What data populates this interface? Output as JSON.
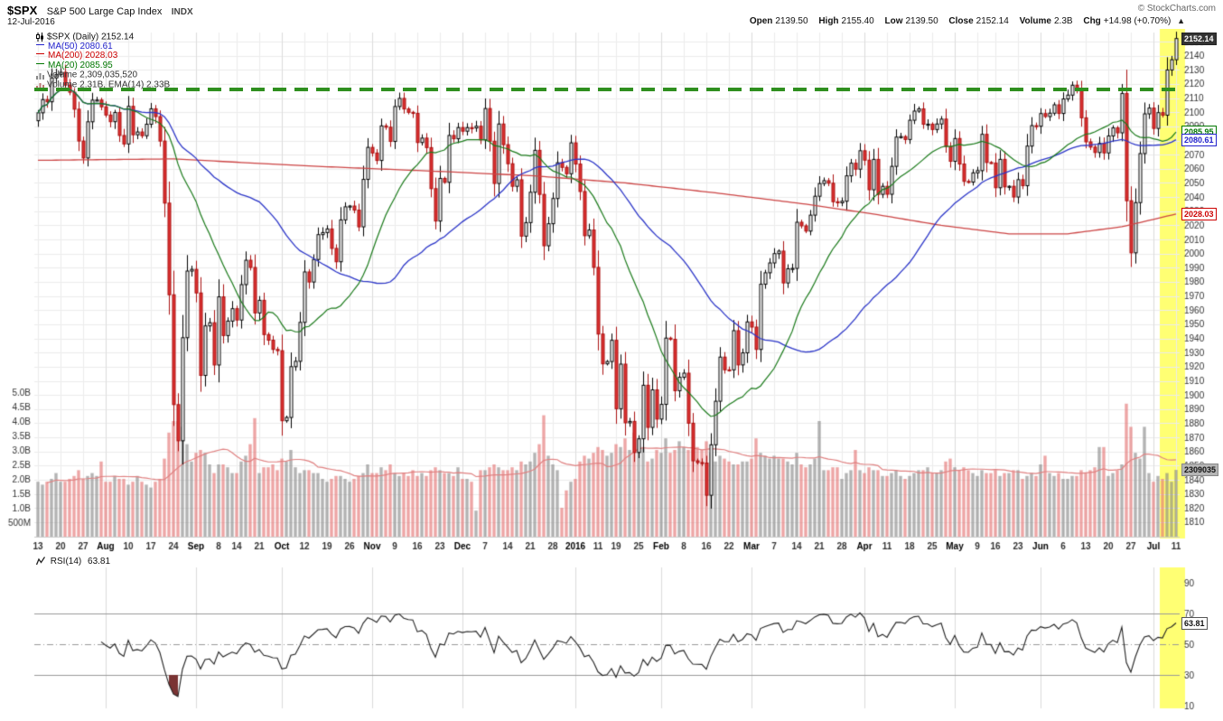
{
  "header": {
    "symbol": "$SPX",
    "name": "S&P 500 Large Cap Index",
    "exchange": "INDX",
    "copyright": "© StockCharts.com",
    "date": "12-Jul-2016",
    "quote": [
      {
        "label": "Open",
        "value": "2139.50"
      },
      {
        "label": "High",
        "value": "2155.40"
      },
      {
        "label": "Low",
        "value": "2139.50"
      },
      {
        "label": "Close",
        "value": "2152.14"
      },
      {
        "label": "Volume",
        "value": "2.3B"
      },
      {
        "label": "Chg",
        "value": "+14.98 (+0.70%)"
      }
    ],
    "arrow": "▲"
  },
  "legend": {
    "items": [
      {
        "text": "$SPX (Daily) 2152.14",
        "color": "#111111"
      },
      {
        "text": "MA(50) 2080.61",
        "color": "#2222cc"
      },
      {
        "text": "MA(200) 2028.03",
        "color": "#cc0000"
      },
      {
        "text": "MA(20) 2085.95",
        "color": "#007700"
      },
      {
        "text": "Volume 2,309,035,520",
        "color": "#333333"
      },
      {
        "text": "Volume 2.31B, EMA(14) 2.33B",
        "color": "#333333"
      }
    ]
  },
  "tags": {
    "last": "2152.14",
    "ma20": "2085.95",
    "ma50": "2080.61",
    "ma200": "2028.03",
    "volume": "2309035"
  },
  "rsi_panel": {
    "label": "RSI(14)",
    "value": "63.81",
    "ticks": [
      90,
      70,
      50,
      30,
      10
    ]
  },
  "chart_data": {
    "type": "candlestick",
    "title": "$SPX S&P 500 Large Cap Index (Daily) with volume and RSI(14)",
    "price_axis": {
      "min": 1810,
      "max": 2150,
      "step": 10
    },
    "volume_axis": [
      {
        "label": "5.0B",
        "value": 5.0
      },
      {
        "label": "4.5B",
        "value": 4.5
      },
      {
        "label": "4.0B",
        "value": 4.0
      },
      {
        "label": "3.5B",
        "value": 3.5
      },
      {
        "label": "3.0B",
        "value": 3.0
      },
      {
        "label": "2.5B",
        "value": 2.5
      },
      {
        "label": "2.0B",
        "value": 2.0
      },
      {
        "label": "1.5B",
        "value": 1.5
      },
      {
        "label": "1.0B",
        "value": 1.0
      },
      {
        "label": "500M",
        "value": 0.5
      }
    ],
    "x_tick_labels": [
      "13",
      "20",
      "27",
      "Aug",
      "10",
      "17",
      "24",
      "Sep",
      "8",
      "14",
      "21",
      "Oct",
      "12",
      "19",
      "26",
      "Nov",
      "9",
      "16",
      "23",
      "Dec",
      "7",
      "14",
      "21",
      "28",
      "2016",
      "11",
      "19",
      "25",
      "Feb",
      "8",
      "16",
      "22",
      "Mar",
      "7",
      "14",
      "21",
      "28",
      "Apr",
      "11",
      "18",
      "25",
      "May",
      "9",
      "16",
      "23",
      "Jun",
      "6",
      "13",
      "20",
      "27",
      "Jul",
      "11"
    ],
    "resistance_level": 2116,
    "volume_tag_value": 2.309,
    "first_open": 2094.0,
    "closes": [
      2099.6,
      2108.95,
      2107.4,
      2124.29,
      2126.64,
      2128.28,
      2119.21,
      2114.15,
      2102.15,
      2079.65,
      2067.64,
      2093.25,
      2108.57,
      2108.63,
      2103.84,
      2098.04,
      2093.32,
      2099.84,
      2083.56,
      2077.57,
      2104.18,
      2084.07,
      2086.05,
      2083.39,
      2091.54,
      2102.44,
      2096.92,
      2079.61,
      2035.73,
      1970.89,
      1893.21,
      1867.61,
      1940.51,
      1987.66,
      1988.87,
      1972.18,
      1913.85,
      1948.86,
      1951.13,
      1921.22,
      1969.41,
      1942.04,
      1952.29,
      1961.05,
      1953.03,
      1978.09,
      1995.31,
      1990.2,
      1958.03,
      1966.97,
      1942.74,
      1938.76,
      1932.24,
      1931.34,
      1881.77,
      1884.09,
      1920.03,
      1923.82,
      1951.36,
      1987.05,
      1979.92,
      1995.83,
      2013.43,
      2014.89,
      2017.46,
      2003.69,
      1994.24,
      2023.86,
      2033.11,
      2033.66,
      2030.77,
      2018.94,
      2052.51,
      2075.15,
      2071.18,
      2065.89,
      2090.35,
      2089.41,
      2079.36,
      2104.05,
      2109.79,
      2102.31,
      2099.93,
      2099.2,
      2078.58,
      2081.72,
      2075.0,
      2045.97,
      2023.04,
      2053.19,
      2050.44,
      2083.58,
      2081.24,
      2089.17,
      2086.59,
      2089.14,
      2088.87,
      2090.11,
      2080.41,
      2102.63,
      2079.51,
      2049.62,
      2091.69,
      2077.07,
      2063.59,
      2047.62,
      2052.23,
      2012.37,
      2021.94,
      2043.41,
      2073.07,
      2041.89,
      2005.55,
      2021.15,
      2038.97,
      2064.29,
      2060.99,
      2056.5,
      2078.36,
      2063.36,
      2043.94,
      2012.66,
      2016.71,
      1990.26,
      1943.09,
      1922.03,
      1923.67,
      1938.68,
      1890.28,
      1921.84,
      1880.33,
      1881.33,
      1859.33,
      1868.99,
      1906.9,
      1877.08,
      1903.63,
      1882.95,
      1893.36,
      1940.24,
      1939.38,
      1903.03,
      1912.53,
      1915.45,
      1880.05,
      1853.44,
      1852.21,
      1851.86,
      1829.08,
      1864.78,
      1895.58,
      1926.82,
      1917.83,
      1917.78,
      1945.5,
      1921.27,
      1929.8,
      1951.7,
      1948.05,
      1932.23,
      1978.35,
      1986.45,
      1993.4,
      1999.99,
      2001.76,
      1979.26,
      1989.26,
      1989.57,
      2022.19,
      2019.64,
      2015.93,
      2027.22,
      2040.59,
      2049.58,
      2051.6,
      2049.8,
      2036.71,
      2035.94,
      2037.05,
      2055.01,
      2063.95,
      2059.74,
      2072.78,
      2066.13,
      2045.17,
      2066.66,
      2041.91,
      2047.6,
      2041.99,
      2061.72,
      2082.42,
      2082.78,
      2080.73,
      2094.34,
      2100.8,
      2102.4,
      2091.48,
      2091.58,
      2087.79,
      2091.7,
      2095.15,
      2075.81,
      2065.3,
      2081.43,
      2063.37,
      2051.12,
      2050.63,
      2057.14,
      2058.69,
      2084.39,
      2064.46,
      2064.11,
      2046.61,
      2066.66,
      2047.21,
      2047.63,
      2040.04,
      2052.32,
      2048.04,
      2076.06,
      2090.54,
      2090.1,
      2099.06,
      2096.96,
      2099.33,
      2105.26,
      2099.13,
      2109.41,
      2112.13,
      2119.12,
      2115.48,
      2096.07,
      2079.06,
      2075.32,
      2071.5,
      2077.99,
      2071.22,
      2083.25,
      2088.9,
      2085.45,
      2113.32,
      2037.41,
      2000.54,
      2036.09,
      2070.77,
      2098.86,
      2102.95,
      2088.55,
      2099.73,
      2097.9,
      2129.9,
      2137.16,
      2152.14
    ],
    "volumes_B": [
      1.9,
      1.8,
      1.9,
      2.0,
      2.2,
      1.9,
      1.9,
      2.0,
      2.1,
      2.3,
      2.0,
      2.1,
      2.2,
      2.1,
      2.6,
      1.9,
      1.9,
      2.1,
      2.0,
      2.0,
      1.8,
      1.9,
      2.1,
      1.9,
      1.8,
      1.7,
      1.9,
      2.0,
      2.7,
      3.6,
      4.0,
      4.0,
      3.8,
      3.2,
      2.6,
      2.9,
      3.0,
      2.9,
      2.5,
      2.2,
      2.5,
      2.5,
      2.4,
      2.2,
      2.2,
      2.6,
      2.8,
      3.2,
      4.1,
      2.2,
      2.4,
      2.4,
      2.5,
      2.3,
      2.7,
      2.6,
      3.0,
      2.4,
      2.2,
      2.3,
      2.3,
      2.2,
      2.2,
      2.0,
      1.9,
      2.0,
      2.1,
      2.1,
      2.0,
      1.9,
      2.0,
      2.1,
      2.2,
      2.5,
      2.2,
      2.2,
      2.4,
      2.3,
      2.5,
      2.2,
      2.1,
      2.2,
      2.1,
      2.3,
      2.1,
      2.2,
      2.1,
      2.3,
      2.4,
      2.3,
      2.2,
      2.2,
      2.1,
      2.4,
      2.0,
      2.0,
      1.9,
      0.9,
      2.3,
      2.3,
      2.4,
      2.5,
      2.4,
      2.3,
      2.3,
      2.4,
      2.3,
      2.6,
      2.5,
      2.6,
      2.9,
      3.2,
      4.2,
      2.8,
      2.5,
      2.3,
      1.0,
      1.6,
      1.9,
      2.0,
      2.6,
      2.8,
      2.7,
      2.9,
      3.1,
      3.0,
      2.8,
      2.9,
      3.2,
      3.1,
      3.4,
      3.0,
      3.6,
      3.4,
      3.1,
      2.6,
      2.7,
      3.0,
      2.9,
      3.4,
      2.9,
      3.0,
      3.3,
      3.1,
      3.0,
      3.0,
      3.1,
      3.0,
      3.3,
      2.9,
      2.6,
      2.8,
      2.7,
      2.6,
      2.5,
      2.5,
      2.6,
      2.6,
      2.7,
      3.4,
      2.9,
      2.8,
      2.7,
      2.8,
      2.7,
      2.7,
      2.6,
      2.5,
      2.9,
      2.5,
      2.4,
      2.5,
      2.7,
      4.0,
      2.3,
      2.3,
      2.4,
      2.4,
      2.0,
      2.2,
      2.3,
      3.0,
      2.3,
      2.2,
      2.4,
      2.3,
      2.3,
      2.1,
      2.1,
      2.2,
      2.3,
      2.1,
      2.0,
      2.1,
      2.2,
      2.3,
      2.3,
      2.4,
      2.2,
      2.2,
      2.3,
      2.6,
      2.7,
      2.4,
      2.3,
      2.4,
      2.3,
      2.2,
      2.1,
      2.3,
      2.2,
      2.2,
      2.3,
      2.1,
      2.2,
      2.2,
      2.3,
      2.3,
      2.0,
      2.1,
      2.2,
      2.1,
      2.5,
      2.8,
      2.2,
      2.1,
      2.2,
      2.0,
      2.0,
      2.1,
      2.1,
      2.3,
      2.2,
      2.3,
      2.4,
      3.1,
      3.1,
      2.1,
      2.2,
      2.3,
      2.5,
      4.6,
      3.8,
      2.9,
      2.7,
      3.8,
      2.2,
      1.9,
      2.1,
      2.0,
      2.2,
      1.9,
      2.31
    ],
    "ma200_anchors": [
      [
        0,
        2066
      ],
      [
        30,
        2067
      ],
      [
        60,
        2062
      ],
      [
        90,
        2058
      ],
      [
        110,
        2055
      ],
      [
        130,
        2050
      ],
      [
        150,
        2043
      ],
      [
        170,
        2035
      ],
      [
        185,
        2028
      ],
      [
        200,
        2020
      ],
      [
        215,
        2014
      ],
      [
        228,
        2014
      ],
      [
        240,
        2019
      ],
      [
        252,
        2028
      ]
    ],
    "overlays": {
      "ma20": "sma20 of closes",
      "ma50": "sma50 of closes",
      "ma200": "anchor-interpolated",
      "volume_ma": "sma14 of volume",
      "rsi": "wilder RSI(14) of closes"
    },
    "colors": {
      "up_stroke": "#000000",
      "up_fill": "#ffffff",
      "down_stroke": "#aa1111",
      "down_fill": "#dd3333",
      "ma20": "#1a7a1a",
      "ma50": "#2b35c8",
      "ma200": "#cc4444",
      "vol_up": "rgba(130,130,130,0.6)",
      "vol_down": "rgba(228,118,118,0.65)",
      "volume_ma": "#e08080",
      "grid": "#ececec",
      "grid_month": "#dcdcdc",
      "axis_text": "#333333",
      "month_text": "#000000",
      "resistance": "#2f8f1f",
      "highlight": "rgba(255,255,0,0.55)",
      "rsi_line": "#222222",
      "rsi_fill": "#7a3333",
      "rsi_level": "#999999"
    }
  }
}
